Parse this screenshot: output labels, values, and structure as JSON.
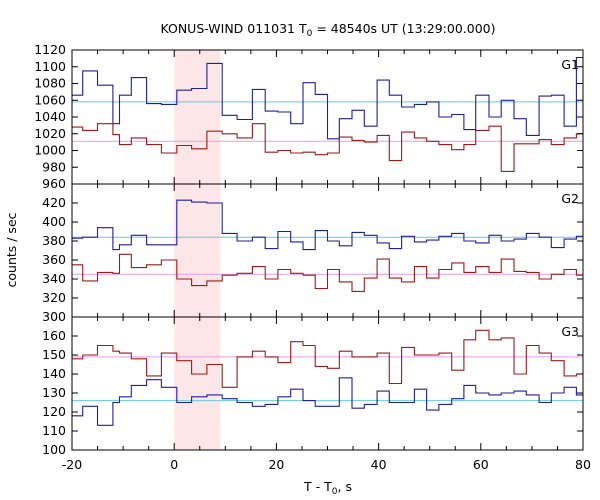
{
  "chart_data": {
    "type": "line",
    "title_prefix": "KONUS-WIND 011031 T",
    "title_sub": "0",
    "title_suffix": " = 48540s UT (13:29:00.000)",
    "xlabel_prefix": "T - T",
    "xlabel_sub": "0",
    "xlabel_suffix": ", s",
    "ylabel": "counts / sec",
    "xlim": [
      -20,
      80
    ],
    "x_ticks": [
      "-20",
      "0",
      "20",
      "40",
      "60",
      "80"
    ],
    "highlight_interval": [
      0,
      9
    ],
    "bin_edges": [
      -20,
      -17.9,
      -15,
      -12,
      -10.7,
      -8.4,
      -5.4,
      -2.5,
      0.5,
      3.4,
      6.4,
      9.4,
      12.3,
      15.3,
      17.8,
      20.3,
      22.8,
      25.2,
      27.6,
      30,
      32.3,
      34.8,
      37.2,
      39.7,
      42.1,
      44.5,
      47,
      49.4,
      51.8,
      54.3,
      56.7,
      59,
      61.6,
      64,
      66.5,
      68.9,
      71.4,
      73.8,
      76.3,
      78.7
    ],
    "panels": [
      {
        "label": "G1",
        "ylim": [
          960,
          1120
        ],
        "y_ticks": [
          "960",
          "980",
          "1000",
          "1020",
          "1040",
          "1060",
          "1080",
          "1100",
          "1120"
        ],
        "series": [
          {
            "values": [
              1066,
              1095,
              1078,
              1032,
              1066,
              1087,
              1056,
              1055,
              1072,
              1074,
              1104,
              1042,
              1037,
              1073,
              1047,
              1046,
              1032,
              1081,
              1067,
              1014,
              1038,
              1048,
              1029,
              1084,
              1066,
              1052,
              1055,
              1058,
              1040,
              1043,
              1025,
              1066,
              1040,
              1060,
              1038,
              1018,
              1065,
              1066,
              1029,
              1111
            ],
            "color": "#1f1f9a"
          },
          {
            "values": [
              1028,
              1024,
              1032,
              1019,
              1007,
              1015,
              1007,
              997,
              1006,
              1002,
              1023,
              1020,
              1015,
              1032,
              998,
              1000,
              997,
              998,
              995,
              997,
              1016,
              1012,
              1010,
              1018,
              988,
              1022,
              1015,
              1011,
              1007,
              1001,
              1007,
              1024,
              1029,
              975,
              1008,
              1008,
              1013,
              1007,
              1015,
              1020
            ],
            "color": "#9b1a1a"
          }
        ],
        "ref_lines": [
          {
            "y": 1058,
            "color": "#66c8e0"
          },
          {
            "y": 1011,
            "color": "#e79be0"
          }
        ]
      },
      {
        "label": "G2",
        "ylim": [
          300,
          440
        ],
        "y_ticks": [
          "300",
          "320",
          "340",
          "360",
          "380",
          "400",
          "420"
        ],
        "series": [
          {
            "values": [
              383,
              384,
              394,
              371,
              376,
              386,
              376,
              376,
              423,
              421,
              420,
              388,
              380,
              384,
              372,
              390,
              379,
              371,
              391,
              380,
              375,
              389,
              386,
              378,
              372,
              385,
              379,
              381,
              385,
              388,
              380,
              378,
              386,
              380,
              382,
              388,
              384,
              373,
              382,
              385
            ],
            "color": "#1f1f9a"
          },
          {
            "values": [
              355,
              338,
              347,
              346,
              366,
              352,
              355,
              360,
              340,
              333,
              338,
              344,
              346,
              353,
              340,
              350,
              346,
              344,
              330,
              350,
              337,
              327,
              341,
              361,
              341,
              337,
              353,
              341,
              350,
              357,
              347,
              353,
              347,
              361,
              348,
              347,
              340,
              345,
              350,
              344
            ],
            "color": "#9b1a1a"
          }
        ],
        "ref_lines": [
          {
            "y": 384,
            "color": "#66c8e0"
          },
          {
            "y": 345,
            "color": "#e79be0"
          }
        ]
      },
      {
        "label": "G3",
        "ylim": [
          100,
          170
        ],
        "y_ticks": [
          "100",
          "110",
          "120",
          "130",
          "140",
          "150",
          "160"
        ],
        "series": [
          {
            "values": [
              118,
              123,
              113,
              125,
              128,
              134,
              137,
              133,
              125,
              128,
              129,
              127,
              125,
              123,
              124,
              128,
              132,
              126,
              123,
              123,
              138,
              122,
              124,
              131,
              125,
              125,
              132,
              121,
              124,
              127,
              134,
              130,
              129,
              130,
              131,
              129,
              125,
              130,
              133,
              129
            ],
            "color": "#1f1f9a"
          },
          {
            "values": [
              148,
              150,
              155,
              152,
              151,
              148,
              139,
              151,
              147,
              140,
              145,
              133,
              149,
              152,
              149,
              146,
              157,
              155,
              144,
              143,
              152,
              149,
              149,
              151,
              135,
              154,
              150,
              150,
              151,
              142,
              158,
              163,
              158,
              159,
              140,
              155,
              151,
              147,
              139,
              140
            ],
            "color": "#9b1a1a"
          }
        ],
        "ref_lines": [
          {
            "y": 149,
            "color": "#e79be0"
          },
          {
            "y": 126,
            "color": "#66c8e0"
          }
        ]
      }
    ]
  }
}
